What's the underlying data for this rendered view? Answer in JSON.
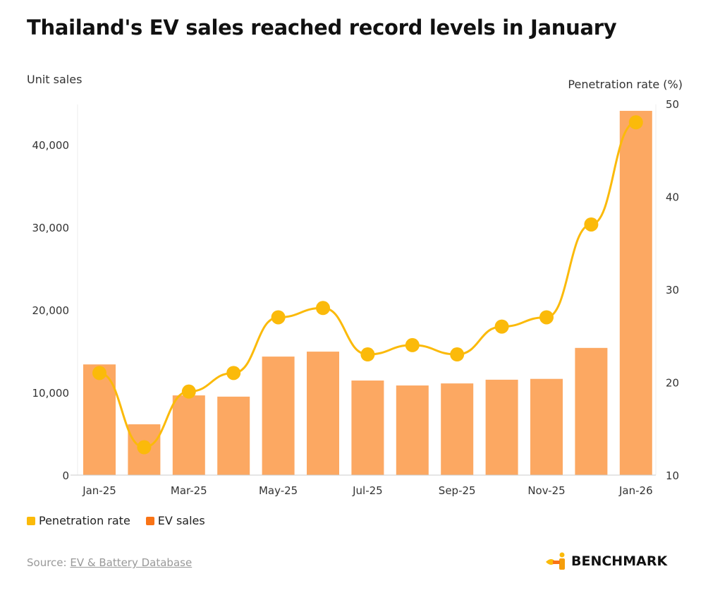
{
  "title": "Thailand's EV sales reached record levels in January",
  "source_label": "Source:",
  "source_link": "EV & Battery Database",
  "logo_text": "BENCHMARK",
  "chart_data": {
    "type": "bar+line",
    "categories": [
      "Jan-25",
      "Feb-25",
      "Mar-25",
      "Apr-25",
      "May-25",
      "Jun-25",
      "Jul-25",
      "Aug-25",
      "Sep-25",
      "Oct-25",
      "Nov-25",
      "Dec-25",
      "Jan-26"
    ],
    "x_tick_labels": [
      "Jan-25",
      "",
      "Mar-25",
      "",
      "May-25",
      "",
      "Jul-25",
      "",
      "Sep-25",
      "",
      "Nov-25",
      "",
      "Jan-26"
    ],
    "left_axis": {
      "label": "Unit sales",
      "range": [
        0,
        45000
      ],
      "ticks": [
        0,
        10000,
        20000,
        30000,
        40000
      ],
      "tick_labels": [
        "0",
        "10,000",
        "20,000",
        "30,000",
        "40,000"
      ]
    },
    "right_axis": {
      "label": "Penetration rate (%)",
      "range": [
        10,
        50
      ],
      "ticks": [
        10,
        20,
        30,
        40,
        50
      ],
      "tick_labels": [
        "10",
        "20",
        "30",
        "40",
        "50"
      ]
    },
    "series": [
      {
        "name": "EV sales",
        "type": "bar",
        "axis": "left",
        "color": "#FCA862",
        "legend_color": "#F97316",
        "values": [
          13400,
          6150,
          9650,
          9500,
          14350,
          14950,
          11450,
          10850,
          11100,
          11550,
          11650,
          15400,
          44100
        ]
      },
      {
        "name": "Penetration rate",
        "type": "line",
        "axis": "right",
        "color": "#FBBA0A",
        "values": [
          21,
          13,
          19,
          21,
          27,
          28,
          23,
          24,
          23,
          26,
          27,
          37,
          48
        ]
      }
    ],
    "grid": false,
    "legend_position": "bottom-left"
  }
}
